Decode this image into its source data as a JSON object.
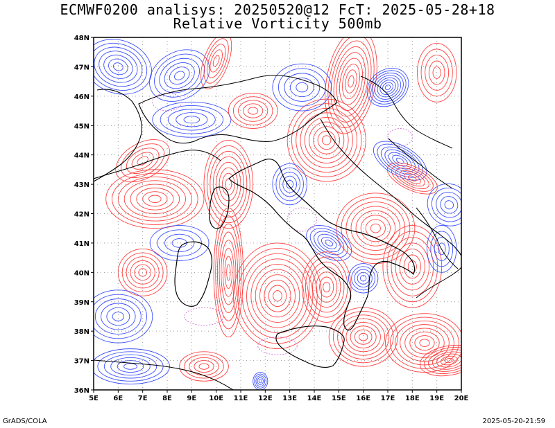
{
  "title": {
    "line1": "ECMWF0200 analisys: 20250520@12 FcT: 2025-05-28+18",
    "line2": "Relative Vorticity 500mb"
  },
  "footer": {
    "left": "GrADS/COLA",
    "right": "2025-05-20-21:59"
  },
  "map": {
    "projection": "lat-lon",
    "lon_range": [
      5,
      20
    ],
    "lat_range": [
      36,
      48
    ],
    "x_ticks": [
      "5E",
      "6E",
      "7E",
      "8E",
      "9E",
      "10E",
      "11E",
      "12E",
      "13E",
      "14E",
      "15E",
      "16E",
      "17E",
      "18E",
      "19E",
      "20E"
    ],
    "y_ticks": [
      "36N",
      "37N",
      "38N",
      "39N",
      "40N",
      "41N",
      "42N",
      "43N",
      "44N",
      "45N",
      "46N",
      "47N",
      "48N"
    ],
    "grid": "dotted",
    "colors": {
      "positive_vorticity": "#ff4040",
      "negative_vorticity": "#3c50ff",
      "zero_contour": "#d070d0",
      "coastline": "#000000",
      "frame": "#000000"
    }
  }
}
